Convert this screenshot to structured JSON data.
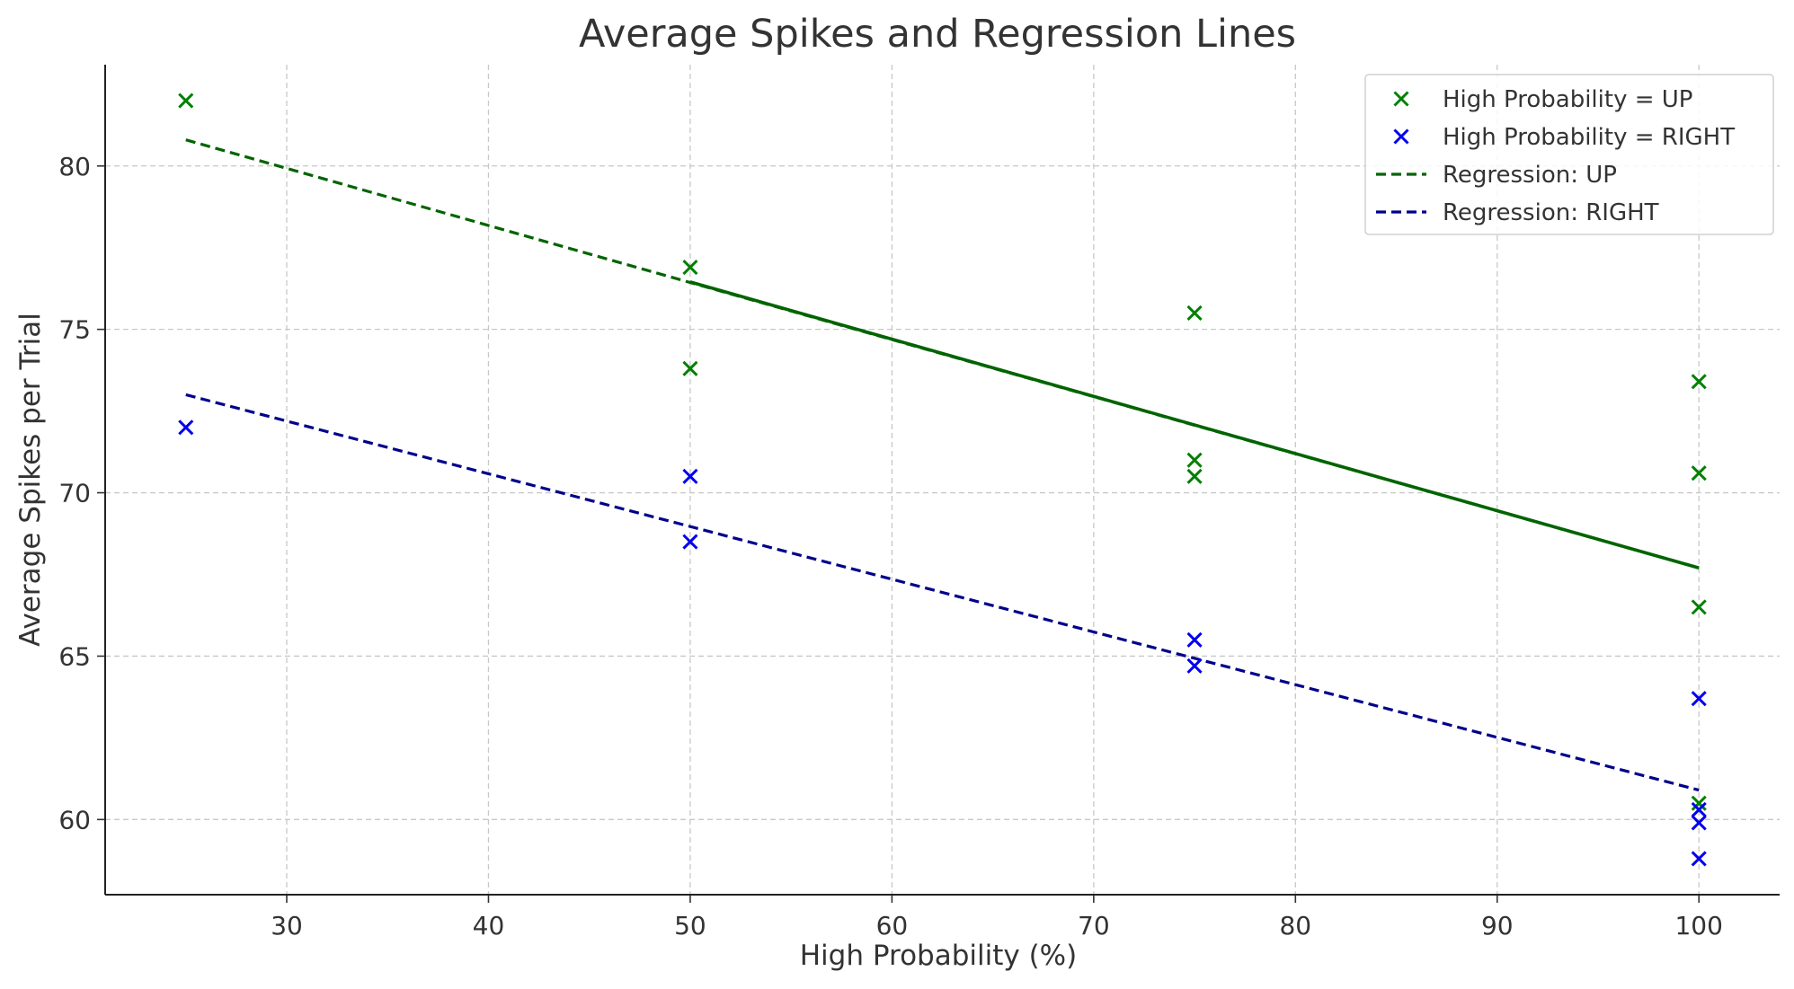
{
  "chart_data": {
    "type": "scatter",
    "title": "Average Spikes and Regression Lines",
    "xlabel": "High Probability (%)",
    "ylabel": "Average Spikes per Trial",
    "xlim": [
      21,
      104
    ],
    "ylim": [
      57.7,
      83.1
    ],
    "xticks": [
      30,
      40,
      50,
      60,
      70,
      80,
      90,
      100
    ],
    "yticks": [
      60,
      65,
      70,
      75,
      80
    ],
    "grid": true,
    "legend_position": "top-right",
    "series": [
      {
        "name": "High Probability = UP",
        "kind": "scatter",
        "marker": "x",
        "color": "#008000",
        "points": [
          [
            25,
            82.0
          ],
          [
            50,
            76.9
          ],
          [
            50,
            73.8
          ],
          [
            75,
            75.5
          ],
          [
            75,
            71.0
          ],
          [
            75,
            70.5
          ],
          [
            100,
            73.4
          ],
          [
            100,
            70.6
          ],
          [
            100,
            66.5
          ],
          [
            100,
            60.5
          ]
        ]
      },
      {
        "name": "High Probability = RIGHT",
        "kind": "scatter",
        "marker": "x",
        "color": "#0000ee",
        "points": [
          [
            25,
            72.0
          ],
          [
            50,
            70.5
          ],
          [
            50,
            68.5
          ],
          [
            75,
            65.5
          ],
          [
            75,
            64.7
          ],
          [
            100,
            63.7
          ],
          [
            100,
            60.3
          ],
          [
            100,
            59.9
          ],
          [
            100,
            58.8
          ]
        ]
      },
      {
        "name": "Regression: UP",
        "kind": "line",
        "dash": "dashed",
        "color": "#006400",
        "points": [
          [
            25,
            80.8
          ],
          [
            100,
            67.7
          ]
        ]
      },
      {
        "name": "Regression: RIGHT",
        "kind": "line",
        "dash": "dashed",
        "color": "#00008b",
        "points": [
          [
            25,
            73.0
          ],
          [
            100,
            60.9
          ]
        ]
      }
    ],
    "overlay": {
      "kind": "line",
      "color": "#006400",
      "points": [
        [
          50,
          76.45
        ],
        [
          100,
          67.7
        ]
      ]
    }
  }
}
